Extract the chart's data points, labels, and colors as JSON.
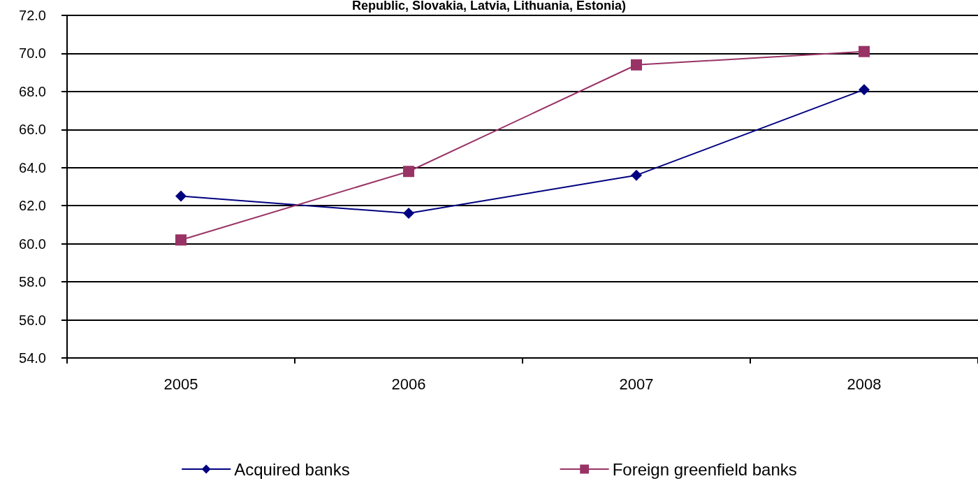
{
  "chart_data": {
    "type": "line",
    "title": "Republic, Slovakia, Latvia, Lithuania, Estonia)",
    "categories": [
      "2005",
      "2006",
      "2007",
      "2008"
    ],
    "series": [
      {
        "name": "Acquired banks",
        "color": "#000080",
        "marker": "diamond",
        "values": [
          62.5,
          61.6,
          63.6,
          68.1
        ]
      },
      {
        "name": "Foreign greenfield banks",
        "color": "#993366",
        "marker": "square",
        "values": [
          60.2,
          63.8,
          69.4,
          70.1
        ]
      }
    ],
    "ylim": [
      54,
      72
    ],
    "yticks": [
      {
        "value": 54,
        "label": "54.0"
      },
      {
        "value": 56,
        "label": "56.0"
      },
      {
        "value": 58,
        "label": "58.0"
      },
      {
        "value": 60,
        "label": "60.0"
      },
      {
        "value": 62,
        "label": "62.0"
      },
      {
        "value": 64,
        "label": "64.0"
      },
      {
        "value": 66,
        "label": "66.0"
      },
      {
        "value": 68,
        "label": "68.0"
      },
      {
        "value": 70,
        "label": "70.0"
      },
      {
        "value": 72,
        "label": "72.0"
      }
    ],
    "grid": "y",
    "legend": "bottom",
    "line_style": "solid"
  }
}
